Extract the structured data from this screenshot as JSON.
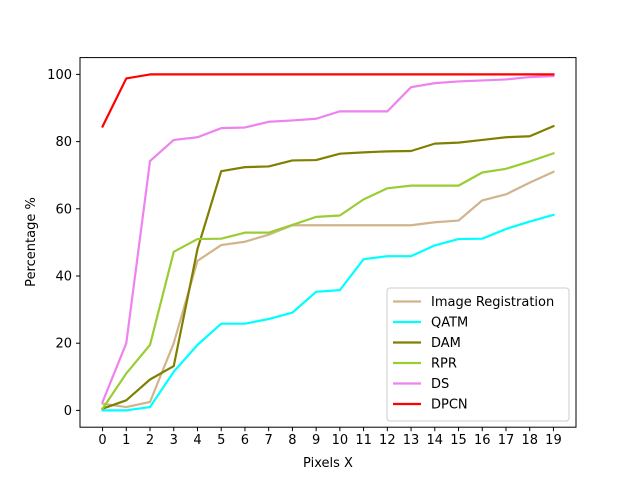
{
  "chart_data": {
    "type": "line",
    "title": "",
    "xlabel": "Pixels X",
    "ylabel": "Percentage %",
    "x": [
      0,
      1,
      2,
      3,
      4,
      5,
      6,
      7,
      8,
      9,
      10,
      11,
      12,
      13,
      14,
      15,
      16,
      17,
      18,
      19
    ],
    "x_ticks": [
      "0",
      "1",
      "2",
      "3",
      "4",
      "5",
      "6",
      "7",
      "8",
      "9",
      "10",
      "11",
      "12",
      "13",
      "14",
      "15",
      "16",
      "17",
      "18",
      "19"
    ],
    "y_ticks": [
      "0",
      "20",
      "40",
      "60",
      "80",
      "100"
    ],
    "xlim": [
      -0.95,
      19.95
    ],
    "ylim": [
      -5,
      105
    ],
    "grid": false,
    "legend_position": "lower-right",
    "series": [
      {
        "name": "Image Registration",
        "color": "#d2b48c",
        "values": [
          2,
          1,
          2.5,
          20,
          44.5,
          49.2,
          50.2,
          52.3,
          55.1,
          55.1,
          55.1,
          55.1,
          55.1,
          55.1,
          56,
          56.5,
          62.5,
          64.3,
          67.8,
          71
        ]
      },
      {
        "name": "QATM",
        "color": "#00ffff",
        "values": [
          0,
          0,
          1,
          11.5,
          19.5,
          25.8,
          25.8,
          27.2,
          29.1,
          35.3,
          35.8,
          45,
          45.9,
          45.9,
          49.1,
          51,
          51.1,
          54,
          56.2,
          58.2
        ]
      },
      {
        "name": "DAM",
        "color": "#808000",
        "values": [
          0.5,
          3,
          9.2,
          13.2,
          48,
          71.2,
          72.4,
          72.6,
          74.4,
          74.5,
          76.4,
          76.8,
          77.1,
          77.2,
          79.4,
          79.7,
          80.5,
          81.3,
          81.6,
          84.6
        ]
      },
      {
        "name": "RPR",
        "color": "#9acd32",
        "values": [
          0.5,
          11,
          19.5,
          47.2,
          51,
          51.1,
          52.9,
          52.9,
          55.2,
          57.6,
          58,
          62.8,
          66.1,
          66.9,
          66.9,
          66.9,
          70.8,
          71.9,
          74.1,
          76.5
        ]
      },
      {
        "name": "DS",
        "color": "#ee82ee",
        "values": [
          2.5,
          20,
          74.2,
          80.5,
          81.3,
          84,
          84.2,
          85.9,
          86.3,
          86.8,
          89,
          89,
          89,
          96.2,
          97.4,
          97.9,
          98.2,
          98.5,
          99.2,
          99.5
        ]
      },
      {
        "name": "DPCN",
        "color": "#ff0000",
        "values": [
          84.5,
          98.8,
          100,
          100,
          100,
          100,
          100,
          100,
          100,
          100,
          100,
          100,
          100,
          100,
          100,
          100,
          100,
          100,
          100,
          100
        ]
      }
    ]
  }
}
